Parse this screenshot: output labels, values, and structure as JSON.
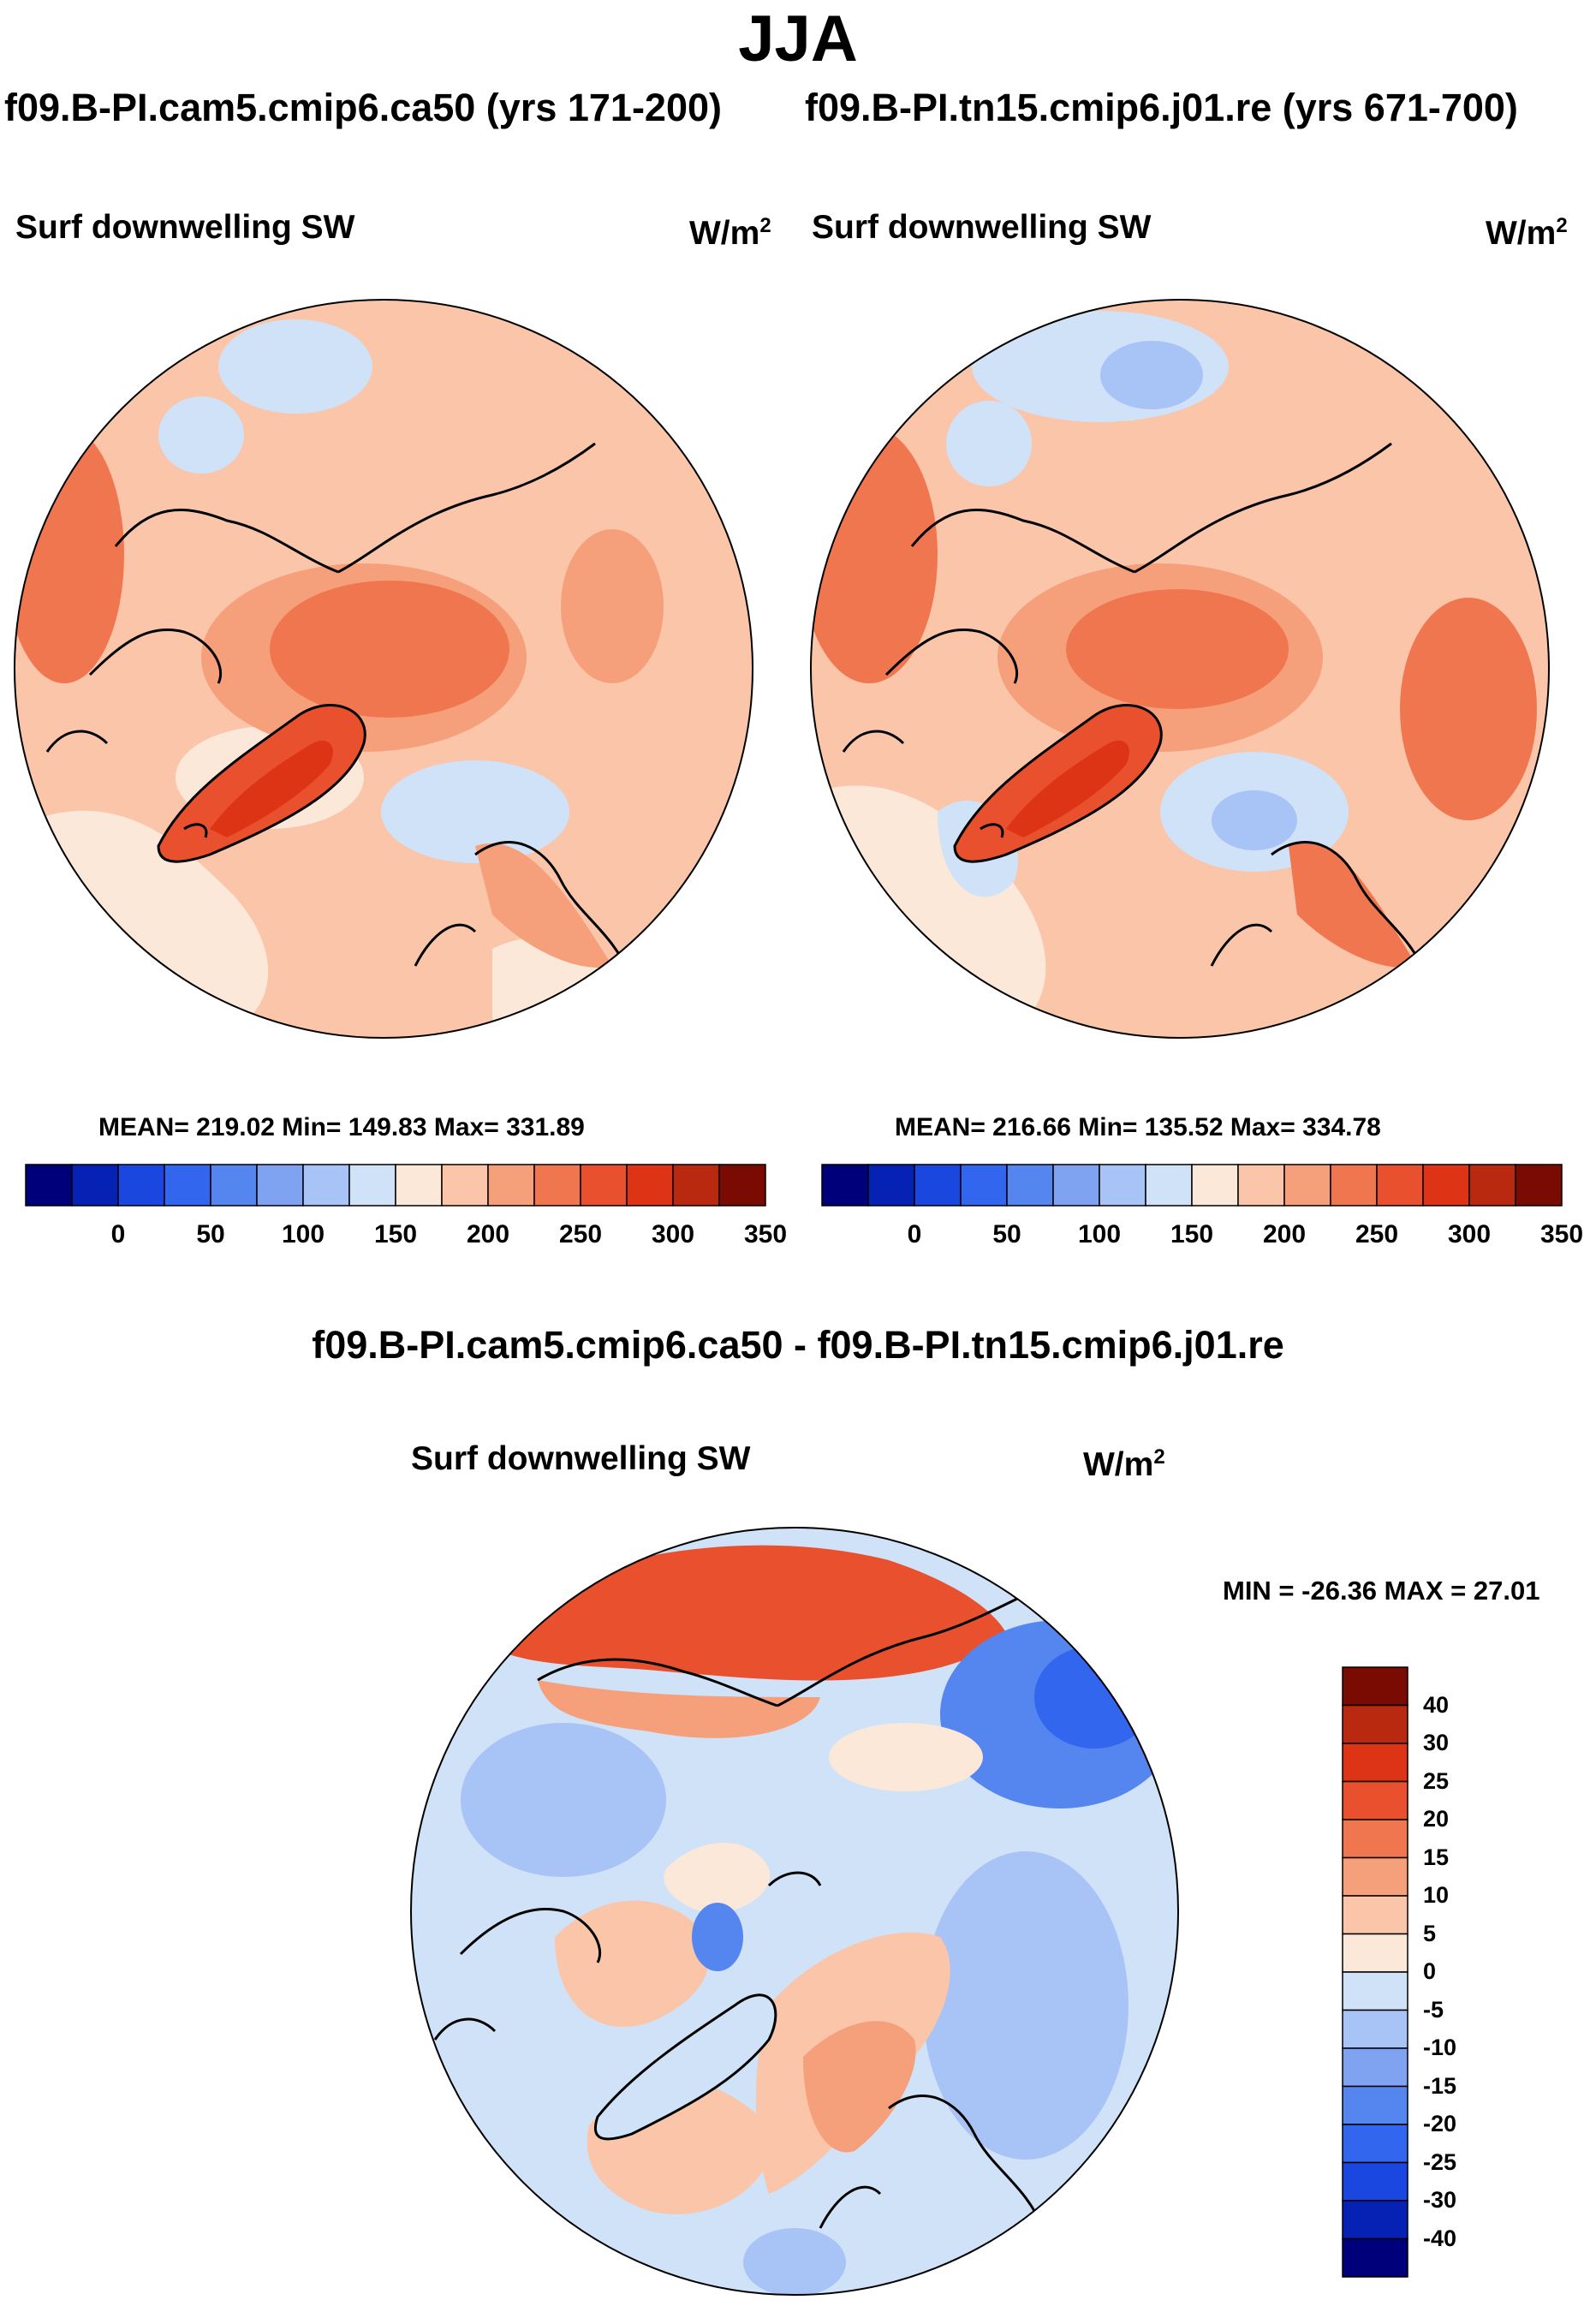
{
  "title": "JJA",
  "panels": [
    {
      "case_title": "f09.B-PI.cam5.cmip6.ca50 (yrs 171-200)",
      "variable": "Surf downwelling SW",
      "units": "W/m",
      "units_exp": "2",
      "stats": "MEAN= 219.02  Min= 149.83  Max= 331.89"
    },
    {
      "case_title": "f09.B-PI.tn15.cmip6.j01.re (yrs 671-700)",
      "variable": "Surf downwelling SW",
      "units": "W/m",
      "units_exp": "2",
      "stats": "MEAN= 216.66  Min= 135.52  Max= 334.78"
    }
  ],
  "abs_colorbar": {
    "colors": [
      "#00007a",
      "#0522b5",
      "#1a47e0",
      "#3366ee",
      "#5585ef",
      "#7fa3f0",
      "#a8c3f5",
      "#d0e2f8",
      "#fce8d8",
      "#fac5a8",
      "#f5a07a",
      "#f07650",
      "#e8502e",
      "#dc3414",
      "#b82910",
      "#7a0b02"
    ],
    "tick_labels": [
      "0",
      "50",
      "100",
      "150",
      "200",
      "250",
      "300",
      "350"
    ]
  },
  "diff": {
    "title": "f09.B-PI.cam5.cmip6.ca50 - f09.B-PI.tn15.cmip6.j01.re",
    "variable": "Surf downwelling SW",
    "units": "W/m",
    "units_exp": "2",
    "minmax": "MIN = -26.36 MAX =  27.01",
    "colorbar": {
      "colors": [
        "#7a0b02",
        "#b82910",
        "#dc3414",
        "#e8502e",
        "#f07650",
        "#f5a07a",
        "#fac5a8",
        "#fce8d8",
        "#d0e2f8",
        "#a8c3f5",
        "#7fa3f0",
        "#5585ef",
        "#3366ee",
        "#1a47e0",
        "#0522b5",
        "#00007a"
      ],
      "tick_labels": [
        "40",
        "30",
        "25",
        "20",
        "15",
        "10",
        "5",
        "0",
        "-5",
        "-10",
        "-15",
        "-20",
        "-25",
        "-30",
        "-40"
      ]
    }
  }
}
